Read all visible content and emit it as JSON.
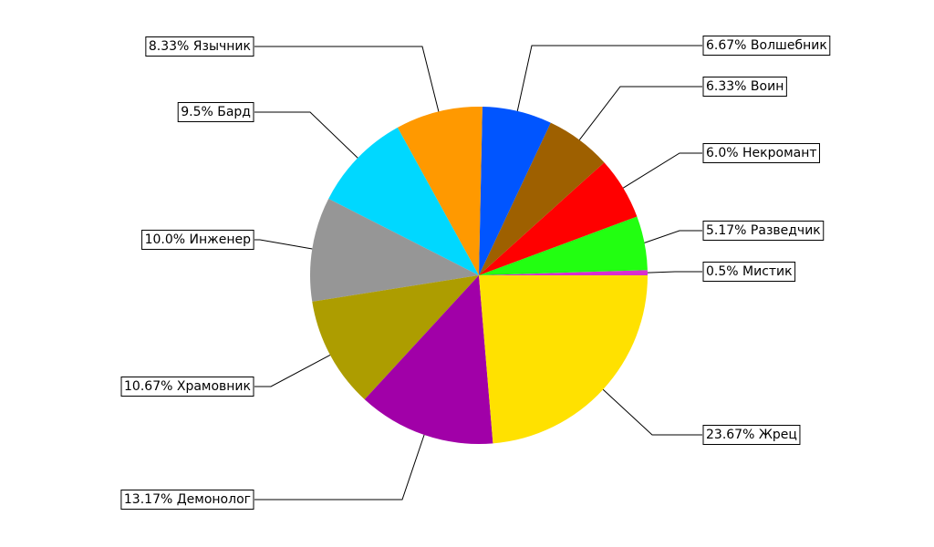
{
  "chart_data": {
    "type": "pie",
    "values": [
      0.5,
      5.17,
      6.0,
      6.33,
      6.67,
      8.33,
      9.5,
      10.0,
      10.67,
      13.17,
      23.67
    ],
    "value_labels": [
      "0.5% Мистик",
      "5.17% Разведчик",
      "6.0% Некромант",
      "6.33% Воин",
      "6.67% Волшебник",
      "8.33% Язычник",
      "9.5% Бард",
      "10.0% Инженер",
      "10.67% Храмовник",
      "13.17% Демонолог",
      "23.67% Жрец"
    ],
    "colors": [
      "#d92ed0",
      "#22ff11",
      "#ff0000",
      "#9e6000",
      "#0055ff",
      "#ff9900",
      "#00d8ff",
      "#969696",
      "#ad9d00",
      "#a100a8",
      "#ffe100"
    ]
  }
}
